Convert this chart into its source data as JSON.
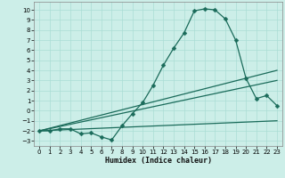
{
  "xlabel": "Humidex (Indice chaleur)",
  "xlim": [
    -0.5,
    23.5
  ],
  "ylim": [
    -3.5,
    10.8
  ],
  "xticks": [
    0,
    1,
    2,
    3,
    4,
    5,
    6,
    7,
    8,
    9,
    10,
    11,
    12,
    13,
    14,
    15,
    16,
    17,
    18,
    19,
    20,
    21,
    22,
    23
  ],
  "yticks": [
    -3,
    -2,
    -1,
    0,
    1,
    2,
    3,
    4,
    5,
    6,
    7,
    8,
    9,
    10
  ],
  "bg_color": "#cceee8",
  "line_color": "#1a6b5a",
  "grid_color": "#aaddd5",
  "main_x": [
    0,
    1,
    2,
    3,
    4,
    5,
    6,
    7,
    8,
    9,
    10,
    11,
    12,
    13,
    14,
    15,
    16,
    17,
    18,
    19,
    20,
    21,
    22,
    23
  ],
  "main_y": [
    -2,
    -2,
    -1.8,
    -1.8,
    -2.3,
    -2.2,
    -2.6,
    -2.9,
    -1.5,
    -0.3,
    0.8,
    2.5,
    4.5,
    6.2,
    7.7,
    9.9,
    10.1,
    10.0,
    9.1,
    7.0,
    3.2,
    1.2,
    1.5,
    0.5
  ],
  "fan_lines": [
    {
      "x0": 0,
      "y0": -2,
      "x1": 23,
      "y1": 4.0
    },
    {
      "x0": 0,
      "y0": -2,
      "x1": 23,
      "y1": 3.0
    },
    {
      "x0": 0,
      "y0": -2,
      "x1": 23,
      "y1": -1.0
    }
  ],
  "marker": "D",
  "markersize": 2.5,
  "linewidth": 0.9
}
